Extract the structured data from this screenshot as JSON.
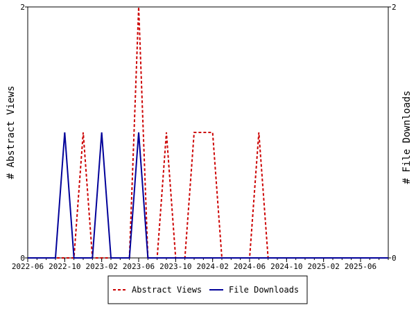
{
  "chart_data": {
    "type": "line",
    "x_ticks": [
      "2022-06",
      "2022-10",
      "2023-02",
      "2023-06",
      "2023-10",
      "2024-02",
      "2024-06",
      "2024-10",
      "2025-02",
      "2025-06"
    ],
    "x_range": [
      "2022-06",
      "2025-09"
    ],
    "ylabel_left": "# Abstract Views",
    "ylabel_right": "# File Downloads",
    "ylim_left": [
      0,
      2
    ],
    "ylim_right": [
      0,
      2
    ],
    "y_ticks_left": [
      "0",
      "2"
    ],
    "y_ticks_right": [
      "0",
      "2"
    ],
    "grid": false,
    "legend_position": "bottom",
    "series": [
      {
        "name": "Abstract Views",
        "axis": "left",
        "color": "#cc0000",
        "style": "dashed",
        "x": [
          "2022-06",
          "2022-07",
          "2022-08",
          "2022-09",
          "2022-10",
          "2022-11",
          "2022-12",
          "2023-01",
          "2023-02",
          "2023-03",
          "2023-04",
          "2023-05",
          "2023-06",
          "2023-07",
          "2023-08",
          "2023-09",
          "2023-10",
          "2023-11",
          "2023-12",
          "2024-01",
          "2024-02",
          "2024-03",
          "2024-04",
          "2024-05",
          "2024-06",
          "2024-07",
          "2024-08",
          "2024-09",
          "2024-10",
          "2024-11",
          "2024-12",
          "2025-01",
          "2025-02",
          "2025-03",
          "2025-04",
          "2025-05",
          "2025-06",
          "2025-07",
          "2025-08",
          "2025-09"
        ],
        "values": [
          0,
          0,
          0,
          0,
          0,
          0,
          1,
          0,
          0,
          0,
          0,
          0,
          2,
          0,
          0,
          1,
          0,
          0,
          1,
          1,
          1,
          0,
          0,
          0,
          0,
          1,
          0,
          0,
          0,
          0,
          0,
          0,
          0,
          0,
          0,
          0,
          0,
          0,
          0,
          0
        ]
      },
      {
        "name": "File Downloads",
        "axis": "right",
        "color": "#000099",
        "style": "solid",
        "x": [
          "2022-06",
          "2022-07",
          "2022-08",
          "2022-09",
          "2022-10",
          "2022-11",
          "2022-12",
          "2023-01",
          "2023-02",
          "2023-03",
          "2023-04",
          "2023-05",
          "2023-06",
          "2023-07",
          "2023-08",
          "2023-09",
          "2023-10",
          "2023-11",
          "2023-12",
          "2024-01",
          "2024-02",
          "2024-03",
          "2024-04",
          "2024-05",
          "2024-06",
          "2024-07",
          "2024-08",
          "2024-09",
          "2024-10",
          "2024-11",
          "2024-12",
          "2025-01",
          "2025-02",
          "2025-03",
          "2025-04",
          "2025-05",
          "2025-06",
          "2025-07",
          "2025-08",
          "2025-09"
        ],
        "values": [
          0,
          0,
          0,
          0,
          1,
          0,
          0,
          0,
          1,
          0,
          0,
          0,
          1,
          0,
          0,
          0,
          0,
          0,
          0,
          0,
          0,
          0,
          0,
          0,
          0,
          0,
          0,
          0,
          0,
          0,
          0,
          0,
          0,
          0,
          0,
          0,
          0,
          0,
          0,
          0
        ]
      }
    ]
  }
}
